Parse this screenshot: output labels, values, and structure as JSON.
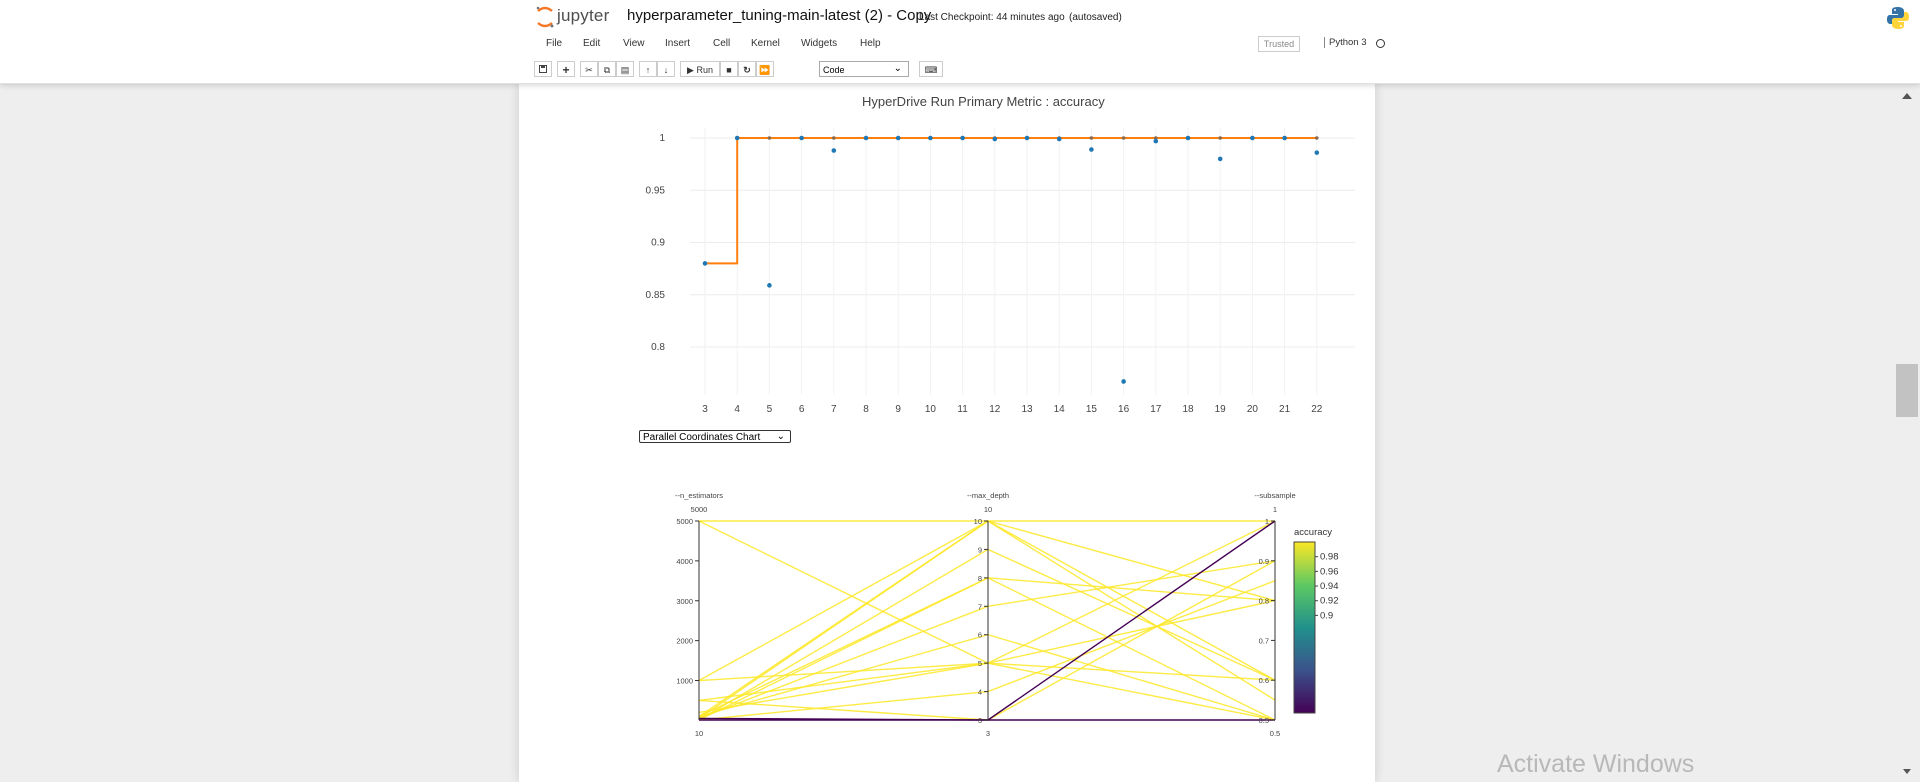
{
  "header": {
    "logo_text": "jupyter",
    "notebook_title": "hyperparameter_tuning-main-latest (2) - Copy",
    "checkpoint": "Last Checkpoint: 44 minutes ago",
    "autosave": "(autosaved)"
  },
  "menu": {
    "items": [
      "File",
      "Edit",
      "View",
      "Insert",
      "Cell",
      "Kernel",
      "Widgets",
      "Help"
    ],
    "trusted": "Trusted",
    "kernel": "Python 3"
  },
  "toolbar": {
    "run_label": "Run",
    "cell_type": "Code",
    "icons": [
      "save-icon",
      "add-cell-icon",
      "cut-icon",
      "copy-icon",
      "paste-icon",
      "move-up-icon",
      "move-down-icon",
      "run-icon",
      "stop-icon",
      "restart-icon",
      "fast-forward-icon",
      "keyboard-icon"
    ]
  },
  "colors": {
    "accent_orange": "#ff7f0e",
    "point_blue": "#1f77b4",
    "line_yellow": "#fde725",
    "line_purple": "#440154"
  },
  "chart_data": [
    {
      "type": "line",
      "title": "HyperDrive Run Primary Metric : accuracy",
      "xlabel": "",
      "ylabel": "",
      "categories": [
        "3",
        "4",
        "5",
        "6",
        "7",
        "8",
        "9",
        "10",
        "11",
        "12",
        "13",
        "14",
        "15",
        "16",
        "17",
        "18",
        "19",
        "20",
        "21",
        "22"
      ],
      "ylim": [
        0.75,
        1.02
      ],
      "yticks": [
        "0.8",
        "0.85",
        "0.9",
        "0.95",
        "1"
      ],
      "grid": true,
      "series": [
        {
          "kind": "scatter",
          "values": [
            0.88,
            1.0,
            0.859,
            1.0,
            0.988,
            1.0,
            1.0,
            1.0,
            1.0,
            0.999,
            1.0,
            0.999,
            0.989,
            0.767,
            0.997,
            1.0,
            0.98,
            1.0,
            1.0,
            0.986
          ]
        },
        {
          "kind": "best-so-far-step",
          "values": [
            0.88,
            1.0,
            1.0,
            1.0,
            1.0,
            1.0,
            1.0,
            1.0,
            1.0,
            1.0,
            1.0,
            1.0,
            1.0,
            1.0,
            1.0,
            1.0,
            1.0,
            1.0,
            1.0,
            1.0
          ]
        }
      ]
    },
    {
      "type": "parallel-coordinates",
      "selector": "Parallel Coordinates Chart",
      "dimensions": [
        {
          "label": "--n_estimators",
          "range": [
            10,
            5000
          ],
          "ticks": [
            "1000",
            "2000",
            "3000",
            "4000",
            "5000"
          ],
          "top_label": "5000",
          "bottom_label": "10"
        },
        {
          "label": "--max_depth",
          "range": [
            3,
            10
          ],
          "ticks": [
            "3",
            "4",
            "5",
            "6",
            "7",
            "8",
            "9",
            "10"
          ],
          "top_label": "10",
          "bottom_label": "3"
        },
        {
          "label": "--subsample",
          "range": [
            0.5,
            1
          ],
          "ticks": [
            "0.5",
            "0.6",
            "0.7",
            "0.8",
            "0.9",
            "1"
          ],
          "top_label": "1",
          "bottom_label": "0.5"
        }
      ],
      "colorbar": {
        "title": "accuracy",
        "ticks": [
          "0.9",
          "0.92",
          "0.94",
          "0.96",
          "0.98"
        ],
        "range": [
          0.767,
          1.0
        ]
      },
      "lines": [
        {
          "values": [
            5000,
            10,
            1.0
          ],
          "accuracy": 1.0
        },
        {
          "values": [
            5000,
            5,
            0.8
          ],
          "accuracy": 1.0
        },
        {
          "values": [
            1000,
            5,
            0.5
          ],
          "accuracy": 1.0
        },
        {
          "values": [
            1000,
            10,
            0.55
          ],
          "accuracy": 1.0
        },
        {
          "values": [
            500,
            3,
            0.9
          ],
          "accuracy": 1.0
        },
        {
          "values": [
            500,
            5,
            0.6
          ],
          "accuracy": 1.0
        },
        {
          "values": [
            100,
            10,
            0.8
          ],
          "accuracy": 1.0
        },
        {
          "values": [
            100,
            8,
            0.5
          ],
          "accuracy": 1.0
        },
        {
          "values": [
            50,
            10,
            0.6
          ],
          "accuracy": 1.0
        },
        {
          "values": [
            50,
            7,
            0.9
          ],
          "accuracy": 1.0
        },
        {
          "values": [
            10,
            8,
            0.8
          ],
          "accuracy": 1.0
        },
        {
          "values": [
            10,
            4,
            0.85
          ],
          "accuracy": 1.0
        },
        {
          "values": [
            200,
            5,
            1.0
          ],
          "accuracy": 1.0
        },
        {
          "values": [
            10,
            9,
            0.6
          ],
          "accuracy": 1.0
        },
        {
          "values": [
            100,
            6,
            0.5
          ],
          "accuracy": 1.0
        },
        {
          "values": [
            10,
            3,
            0.5
          ],
          "accuracy": 0.88
        },
        {
          "values": [
            50,
            3,
            1.0
          ],
          "accuracy": 0.767
        }
      ]
    }
  ],
  "watermark": "Activate Windows"
}
